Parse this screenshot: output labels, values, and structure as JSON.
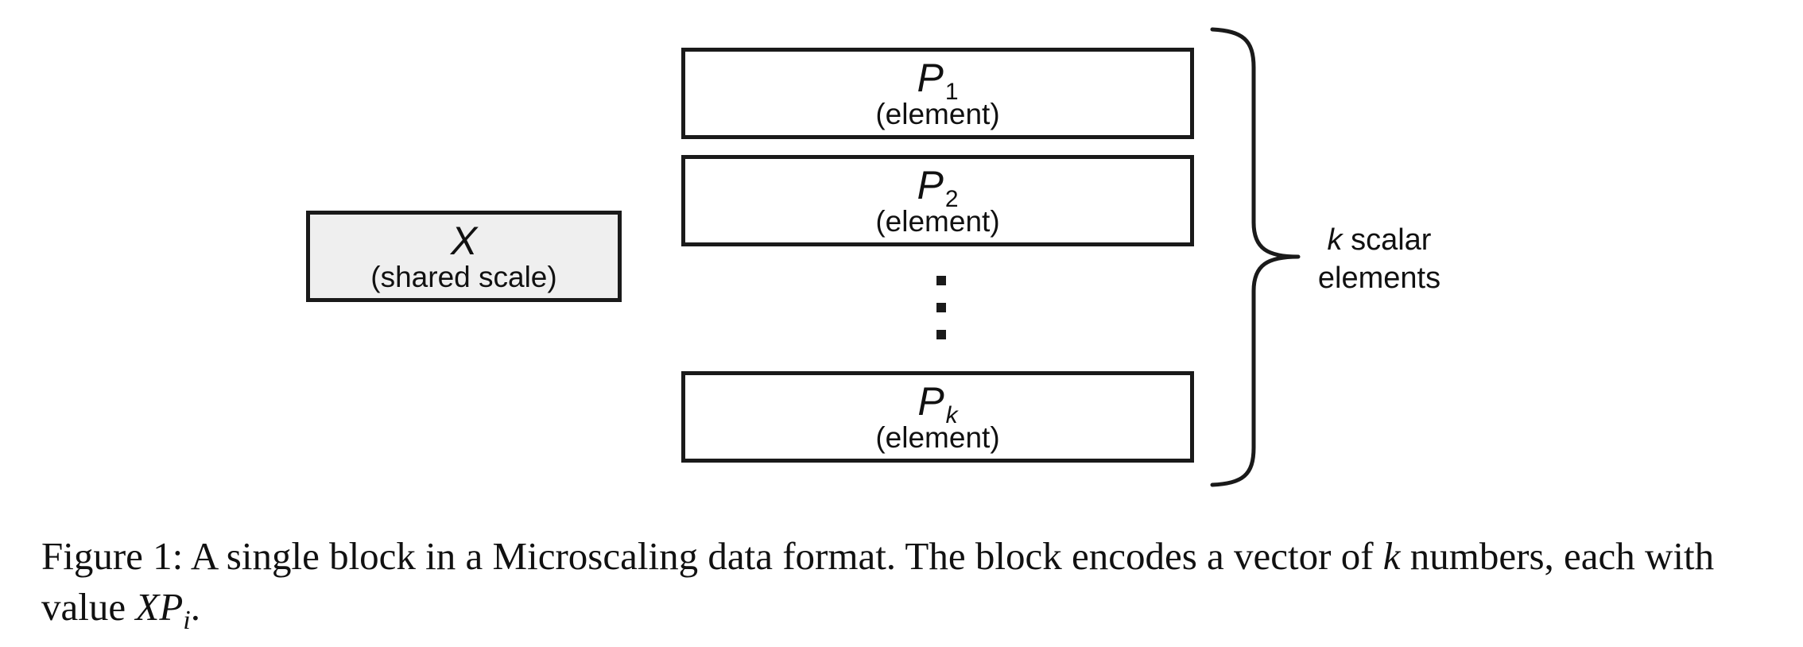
{
  "scale_box": {
    "symbol": "X",
    "label": "(shared scale)"
  },
  "elements": [
    {
      "symbol": "P",
      "subscript": "1",
      "label": "(element)"
    },
    {
      "symbol": "P",
      "subscript": "2",
      "label": "(element)"
    },
    {
      "symbol": "P",
      "subscript": "k",
      "label": "(element)"
    }
  ],
  "brace_label": {
    "variable": "k",
    "line1_rest": " scalar",
    "line2": "elements"
  },
  "caption": {
    "text_before": "Figure 1: A single block in a Microscaling data format. The block encodes a vector of ",
    "k": "k",
    "text_middle": " numbers, each with value ",
    "X": "X",
    "P": "P",
    "i": "i",
    "period": "."
  },
  "colors": {
    "scale_fill": "#efefef",
    "border": "#1a1a1a"
  }
}
